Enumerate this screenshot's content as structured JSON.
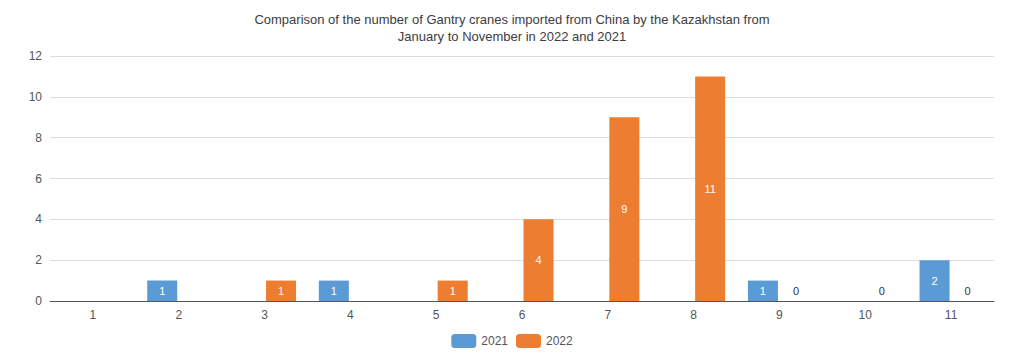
{
  "chart_data": {
    "type": "bar",
    "title": "Comparison of the number of Gantry cranes imported from China by the Kazakhstan from\nJanuary to November in 2022 and 2021",
    "categories": [
      "1",
      "2",
      "3",
      "4",
      "5",
      "6",
      "7",
      "8",
      "9",
      "10",
      "11"
    ],
    "series": [
      {
        "name": "2021",
        "color": "#5b9bd5",
        "values": [
          0,
          1,
          0,
          1,
          0,
          0,
          0,
          0,
          1,
          0,
          2
        ],
        "value_labels": [
          null,
          "1",
          null,
          "1",
          null,
          null,
          null,
          null,
          "1",
          null,
          "2"
        ]
      },
      {
        "name": "2022",
        "color": "#ed7d31",
        "values": [
          0,
          0,
          1,
          0,
          1,
          4,
          9,
          11,
          0,
          0,
          0
        ],
        "value_labels": [
          null,
          null,
          "1",
          null,
          "1",
          "4",
          "9",
          "11",
          "0",
          "0",
          "0"
        ]
      }
    ],
    "ylim": [
      0,
      12
    ],
    "yticks": [
      0,
      2,
      4,
      6,
      8,
      10,
      12
    ],
    "grid": true,
    "legend": "bottom",
    "data_labels": true
  }
}
